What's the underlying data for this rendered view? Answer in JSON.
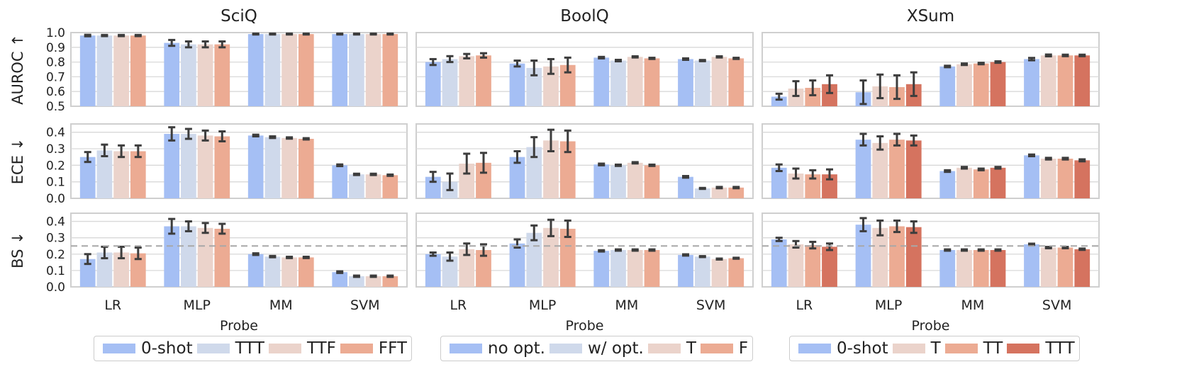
{
  "chart_data": {
    "type": "bar",
    "rows": [
      {
        "label": "AUROC ↑",
        "ticks": [
          0.5,
          0.6,
          0.7,
          0.8,
          0.9,
          1.0
        ],
        "tick_labels": [
          "0.5",
          "0.6",
          "0.7",
          "0.8",
          "0.9",
          "1.0"
        ],
        "ylim": [
          0.5,
          1.0
        ]
      },
      {
        "label": "ECE ↓",
        "ticks": [
          0.0,
          0.1,
          0.2,
          0.3,
          0.4
        ],
        "tick_labels": [
          "0.0",
          "0.1",
          "0.2",
          "0.3",
          "0.4"
        ],
        "ylim": [
          0.0,
          0.45
        ]
      },
      {
        "label": "BS ↓",
        "ticks": [
          0.0,
          0.1,
          0.2,
          0.3,
          0.4
        ],
        "tick_labels": [
          "0.0",
          "0.1",
          "0.2",
          "0.3",
          "0.4"
        ],
        "ylim": [
          0.0,
          0.45
        ],
        "reference_line": 0.25
      }
    ],
    "categories": [
      "LR",
      "MLP",
      "MM",
      "SVM"
    ],
    "xlabel": "Probe",
    "datasets": [
      {
        "title": "SciQ",
        "series": [
          {
            "name": "0-shot",
            "color": "#a5bff4"
          },
          {
            "name": "TTT",
            "color": "#cfd9eb"
          },
          {
            "name": "TTF",
            "color": "#ebd3cb"
          },
          {
            "name": "FFT",
            "color": "#ecab93"
          }
        ],
        "metrics": [
          {
            "values": [
              [
                0.98,
                0.93,
                0.99,
                0.99
              ],
              [
                0.98,
                0.92,
                0.99,
                0.99
              ],
              [
                0.98,
                0.92,
                0.99,
                0.99
              ],
              [
                0.98,
                0.92,
                0.99,
                0.99
              ]
            ],
            "errors": [
              [
                0.005,
                0.02,
                0.003,
                0.003
              ],
              [
                0.004,
                0.02,
                0.003,
                0.003
              ],
              [
                0.004,
                0.02,
                0.003,
                0.003
              ],
              [
                0.004,
                0.02,
                0.003,
                0.003
              ]
            ]
          },
          {
            "values": [
              [
                0.25,
                0.39,
                0.38,
                0.2
              ],
              [
                0.29,
                0.39,
                0.37,
                0.145
              ],
              [
                0.285,
                0.38,
                0.365,
                0.145
              ],
              [
                0.285,
                0.375,
                0.36,
                0.14
              ]
            ],
            "errors": [
              [
                0.03,
                0.04,
                0.005,
                0.005
              ],
              [
                0.035,
                0.03,
                0.005,
                0.004
              ],
              [
                0.035,
                0.03,
                0.004,
                0.004
              ],
              [
                0.035,
                0.03,
                0.004,
                0.004
              ]
            ]
          },
          {
            "values": [
              [
                0.17,
                0.37,
                0.2,
                0.09
              ],
              [
                0.21,
                0.37,
                0.185,
                0.065
              ],
              [
                0.21,
                0.36,
                0.18,
                0.065
              ],
              [
                0.205,
                0.355,
                0.18,
                0.065
              ]
            ],
            "errors": [
              [
                0.03,
                0.045,
                0.005,
                0.005
              ],
              [
                0.035,
                0.03,
                0.004,
                0.004
              ],
              [
                0.035,
                0.03,
                0.004,
                0.004
              ],
              [
                0.035,
                0.03,
                0.004,
                0.004
              ]
            ]
          }
        ]
      },
      {
        "title": "BoolQ",
        "series": [
          {
            "name": "no opt.",
            "color": "#a5bff4"
          },
          {
            "name": "w/ opt.",
            "color": "#cfd9eb"
          },
          {
            "name": "T",
            "color": "#ebd3cb"
          },
          {
            "name": "F",
            "color": "#ecab93"
          }
        ],
        "metrics": [
          {
            "values": [
              [
                0.8,
                0.79,
                0.83,
                0.82
              ],
              [
                0.82,
                0.76,
                0.81,
                0.81
              ],
              [
                0.84,
                0.77,
                0.835,
                0.835
              ],
              [
                0.845,
                0.78,
                0.825,
                0.825
              ]
            ],
            "errors": [
              [
                0.02,
                0.02,
                0.005,
                0.005
              ],
              [
                0.02,
                0.05,
                0.005,
                0.004
              ],
              [
                0.015,
                0.05,
                0.004,
                0.004
              ],
              [
                0.015,
                0.05,
                0.004,
                0.004
              ]
            ]
          },
          {
            "values": [
              [
                0.13,
                0.25,
                0.205,
                0.13
              ],
              [
                0.1,
                0.31,
                0.2,
                0.06
              ],
              [
                0.21,
                0.35,
                0.215,
                0.065
              ],
              [
                0.215,
                0.345,
                0.2,
                0.065
              ]
            ],
            "errors": [
              [
                0.03,
                0.035,
                0.005,
                0.005
              ],
              [
                0.05,
                0.06,
                0.004,
                0.003
              ],
              [
                0.06,
                0.065,
                0.004,
                0.004
              ],
              [
                0.06,
                0.065,
                0.004,
                0.004
              ]
            ]
          },
          {
            "values": [
              [
                0.2,
                0.265,
                0.22,
                0.195
              ],
              [
                0.185,
                0.33,
                0.225,
                0.185
              ],
              [
                0.23,
                0.36,
                0.225,
                0.17
              ],
              [
                0.225,
                0.355,
                0.225,
                0.175
              ]
            ],
            "errors": [
              [
                0.01,
                0.025,
                0.004,
                0.004
              ],
              [
                0.025,
                0.045,
                0.004,
                0.003
              ],
              [
                0.035,
                0.05,
                0.004,
                0.003
              ],
              [
                0.035,
                0.05,
                0.004,
                0.003
              ]
            ]
          }
        ]
      },
      {
        "title": "XSum",
        "series": [
          {
            "name": "0-shot",
            "color": "#a5bff4"
          },
          {
            "name": "T",
            "color": "#ebd3cb"
          },
          {
            "name": "TT",
            "color": "#ecab93"
          },
          {
            "name": "TTT",
            "color": "#d5735f"
          }
        ],
        "metrics": [
          {
            "values": [
              [
                0.565,
                0.595,
                0.77,
                0.82
              ],
              [
                0.62,
                0.635,
                0.785,
                0.845
              ],
              [
                0.625,
                0.63,
                0.79,
                0.845
              ],
              [
                0.65,
                0.65,
                0.8,
                0.845
              ]
            ],
            "errors": [
              [
                0.02,
                0.08,
                0.005,
                0.008
              ],
              [
                0.05,
                0.08,
                0.005,
                0.006
              ],
              [
                0.05,
                0.08,
                0.005,
                0.005
              ],
              [
                0.06,
                0.08,
                0.005,
                0.005
              ]
            ]
          },
          {
            "values": [
              [
                0.185,
                0.355,
                0.165,
                0.26
              ],
              [
                0.15,
                0.335,
                0.185,
                0.24
              ],
              [
                0.145,
                0.355,
                0.175,
                0.24
              ],
              [
                0.145,
                0.35,
                0.185,
                0.23
              ]
            ],
            "errors": [
              [
                0.02,
                0.035,
                0.005,
                0.005
              ],
              [
                0.03,
                0.04,
                0.005,
                0.005
              ],
              [
                0.025,
                0.035,
                0.005,
                0.005
              ],
              [
                0.03,
                0.03,
                0.005,
                0.006
              ]
            ]
          },
          {
            "values": [
              [
                0.29,
                0.38,
                0.225,
                0.26
              ],
              [
                0.26,
                0.36,
                0.225,
                0.24
              ],
              [
                0.255,
                0.37,
                0.225,
                0.24
              ],
              [
                0.245,
                0.365,
                0.225,
                0.23
              ]
            ],
            "errors": [
              [
                0.01,
                0.04,
                0.004,
                0.004
              ],
              [
                0.02,
                0.045,
                0.004,
                0.004
              ],
              [
                0.02,
                0.035,
                0.004,
                0.004
              ],
              [
                0.02,
                0.035,
                0.004,
                0.004
              ]
            ]
          }
        ]
      }
    ]
  }
}
